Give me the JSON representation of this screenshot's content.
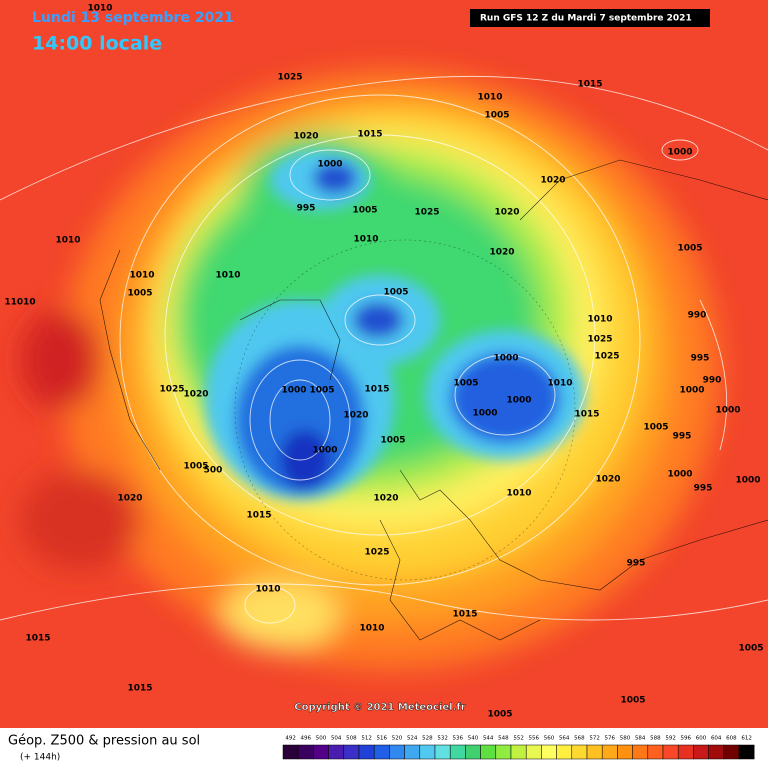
{
  "header": {
    "date": "Lundi 13 septembre 2021",
    "time": "14:00 locale",
    "run": "Run GFS 12 Z du Mardi 7 septembre 2021"
  },
  "map": {
    "pressure_labels": [
      "1010",
      "1025",
      "1015",
      "1010",
      "1005",
      "1020",
      "1015",
      "1000",
      "1000",
      "1020",
      "995",
      "1005",
      "1025",
      "1020",
      "1010",
      "1010",
      "1005",
      "1020",
      "1010",
      "1010",
      "1005",
      "1005",
      "11010",
      "1010",
      "990",
      "1025",
      "1025",
      "995",
      "1000",
      "1025",
      "1020",
      "1000",
      "1005",
      "1015",
      "1005",
      "1010",
      "990",
      "1000",
      "1000",
      "1020",
      "1000",
      "1000",
      "1015",
      "1005",
      "995",
      "1005",
      "1000",
      "1005",
      "500",
      "1020",
      "1000",
      "995",
      "1000",
      "1010",
      "1020",
      "1020",
      "1015",
      "1025",
      "995",
      "1010",
      "1010",
      "1015",
      "1015",
      "1005",
      "1015",
      "1005",
      "1005"
    ],
    "copyright": "Copyright © 2021 Meteociel.fr"
  },
  "legend": {
    "title": "Géop. Z500 & pression au sol",
    "subtitle": "(+ 144h)",
    "scale": [
      492,
      496,
      500,
      504,
      508,
      512,
      516,
      520,
      524,
      528,
      532,
      536,
      540,
      544,
      548,
      552,
      556,
      560,
      564,
      568,
      572,
      576,
      580,
      584,
      588,
      592,
      596,
      600,
      604,
      608,
      612
    ]
  }
}
